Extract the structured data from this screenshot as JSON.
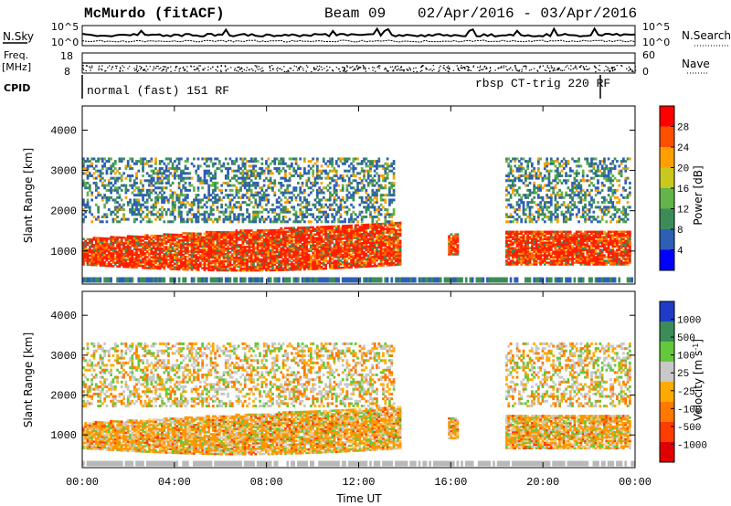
{
  "header": {
    "station": "McMurdo (fitACF)",
    "beam": "Beam 09",
    "date_range": "02/Apr/2016 - 03/Apr/2016"
  },
  "strip": {
    "nsky_label": "N.Sky",
    "nsky_ticks": [
      "10^5",
      "10^0"
    ],
    "nsearch_label": "N.Search",
    "nsearch_ticks": [
      "10^5",
      "10^0"
    ],
    "freq_label": "Freq.",
    "freq_unit": "[MHz]",
    "freq_ticks": [
      "18",
      "8"
    ],
    "nave_label": "Nave",
    "nave_ticks": [
      "60",
      "0"
    ],
    "cpid_label": "CPID",
    "cpid_modes": [
      "normal (fast) 151 RF",
      "rbsp CT-trig 220 RF"
    ]
  },
  "chart_data": [
    {
      "type": "heatmap",
      "name": "power",
      "ylabel": "Slant Range [km]",
      "xlabel": "Time UT",
      "x_ticks": [
        "00:00",
        "04:00",
        "08:00",
        "12:00",
        "16:00",
        "20:00",
        "00:00"
      ],
      "y_ticks": [
        "1000",
        "2000",
        "3000",
        "4000"
      ],
      "x_range_hours": [
        0,
        24
      ],
      "y_range_km": [
        180,
        4600
      ],
      "colorbar": {
        "label": "Power [dB]",
        "ticks": [
          "4",
          "8",
          "12",
          "16",
          "20",
          "24",
          "28"
        ],
        "range": [
          0,
          30
        ],
        "colors": [
          "#0000ff",
          "#2e5fb5",
          "#3c8c5a",
          "#63b44a",
          "#c8c81e",
          "#ffa000",
          "#ff5000",
          "#ff0000"
        ]
      }
    },
    {
      "type": "heatmap",
      "name": "velocity",
      "ylabel": "Slant Range [km]",
      "xlabel": "Time UT",
      "x_ticks": [
        "00:00",
        "04:00",
        "08:00",
        "12:00",
        "16:00",
        "20:00",
        "00:00"
      ],
      "y_ticks": [
        "1000",
        "2000",
        "3000",
        "4000"
      ],
      "x_range_hours": [
        0,
        24
      ],
      "y_range_km": [
        180,
        4600
      ],
      "colorbar": {
        "label": "Velocity [m s",
        "label_sup": "-1",
        "label_end": "]",
        "ticks": [
          "1000",
          "500",
          "100",
          "25",
          "-25",
          "-100",
          "-500",
          "-1000"
        ],
        "colors": [
          "#1e3cc8",
          "#3c8c5a",
          "#64c83c",
          "#c8c8c8",
          "#ffaa00",
          "#ff7800",
          "#ff3c00",
          "#e10000"
        ]
      }
    }
  ],
  "axis_title_x": "Time UT"
}
